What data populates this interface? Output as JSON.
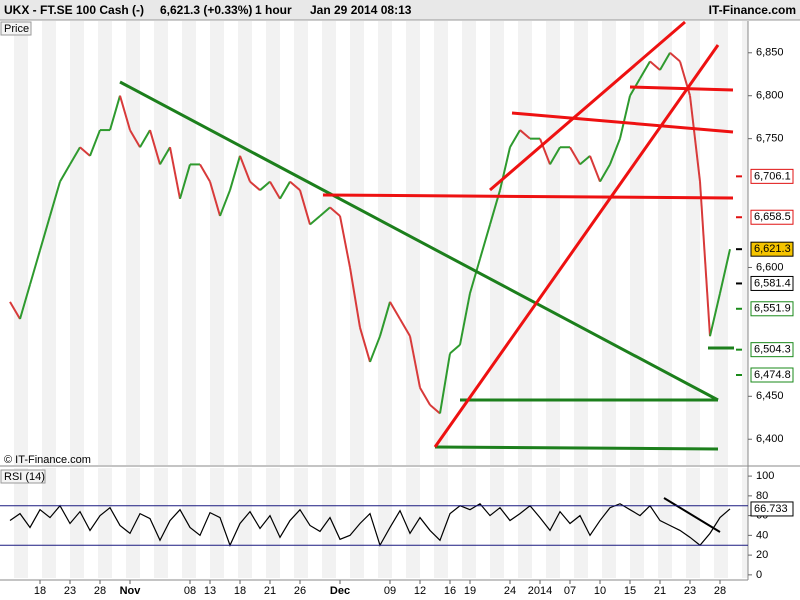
{
  "header": {
    "symbol": "UKX - FT.SE 100 Cash (-)",
    "quote": "6,621.3 (+0.33%)",
    "interval": "1 hour",
    "datetime": "Jan 29 2014 08:13",
    "brand": "IT-Finance.com"
  },
  "chart_data": [
    {
      "type": "line",
      "title": "Price",
      "watermark": "© IT-Finance.com",
      "categories": [
        null,
        null,
        null,
        "18",
        null,
        null,
        "23",
        null,
        null,
        "28",
        null,
        null,
        "Nov",
        null,
        null,
        null,
        null,
        null,
        "08",
        null,
        "13",
        null,
        null,
        "18",
        null,
        null,
        "21",
        null,
        null,
        "26",
        null,
        null,
        null,
        "Dec",
        null,
        null,
        null,
        null,
        "09",
        null,
        null,
        "12",
        null,
        null,
        "16",
        null,
        "19",
        null,
        null,
        null,
        "24",
        null,
        null,
        "2014",
        null,
        null,
        "07",
        null,
        null,
        "10",
        null,
        null,
        "15",
        null,
        null,
        "21",
        null,
        null,
        "23",
        null,
        null,
        "28",
        null
      ],
      "values": [
        6560,
        6540,
        6580,
        6620,
        6660,
        6700,
        6720,
        6740,
        6730,
        6760,
        6760,
        6800,
        6760,
        6740,
        6760,
        6720,
        6740,
        6680,
        6720,
        6720,
        6700,
        6660,
        6690,
        6730,
        6700,
        6690,
        6700,
        6680,
        6700,
        6690,
        6650,
        6660,
        6670,
        6660,
        6600,
        6530,
        6490,
        6520,
        6560,
        6540,
        6520,
        6460,
        6440,
        6430,
        6500,
        6510,
        6570,
        6610,
        6650,
        6690,
        6740,
        6760,
        6750,
        6750,
        6720,
        6740,
        6740,
        6720,
        6730,
        6700,
        6720,
        6750,
        6800,
        6820,
        6840,
        6830,
        6850,
        6840,
        6800,
        6700,
        6520,
        6570,
        6621.3
      ],
      "up_color": "#2e9a2e",
      "down_color": "#d83a3a",
      "ylim": [
        6370,
        6887
      ],
      "yticks": [
        {
          "value": 6400,
          "label": "6,400"
        },
        {
          "value": 6450,
          "label": "6,450"
        },
        {
          "value": 6600,
          "label": "6,600"
        },
        {
          "value": 6750,
          "label": "6,750"
        },
        {
          "value": 6800,
          "label": "6,800"
        },
        {
          "value": 6850,
          "label": "6,850"
        }
      ],
      "price_labels": [
        {
          "value": 6706.1,
          "label": "6,706.1",
          "color": "#e01010"
        },
        {
          "value": 6658.5,
          "label": "6,658.5",
          "color": "#e01010"
        },
        {
          "value": 6621.3,
          "label": "6,621.3",
          "color": "#000000",
          "background": "#f5c400"
        },
        {
          "value": 6581.4,
          "label": "6,581.4",
          "color": "#000000"
        },
        {
          "value": 6551.9,
          "label": "6,551.9",
          "color": "#1a8a1a"
        },
        {
          "value": 6504.3,
          "label": "6,504.3",
          "color": "#1a8a1a"
        },
        {
          "value": 6474.8,
          "label": "6,474.8",
          "color": "#1a8a1a"
        }
      ]
    },
    {
      "type": "line",
      "title": "RSI (14)",
      "color": "#000000",
      "values": [
        55,
        62,
        48,
        66,
        58,
        70,
        52,
        64,
        45,
        60,
        68,
        50,
        42,
        62,
        57,
        35,
        55,
        66,
        48,
        40,
        63,
        58,
        30,
        52,
        64,
        47,
        60,
        38,
        55,
        66,
        50,
        44,
        58,
        36,
        40,
        52,
        62,
        30,
        48,
        65,
        42,
        58,
        45,
        35,
        62,
        70,
        66,
        72,
        60,
        68,
        55,
        62,
        70,
        58,
        45,
        64,
        52,
        60,
        40,
        55,
        68,
        72,
        66,
        60,
        70,
        55,
        50,
        45,
        38,
        30,
        42,
        58,
        66.733
      ],
      "value_labels": {
        "72": "66.733"
      },
      "ylim": [
        -5.2,
        108.2
      ],
      "yticks": [
        0,
        20,
        40,
        60,
        80,
        100
      ],
      "levels": [
        30,
        70
      ],
      "level_color": "#1a1a80"
    }
  ]
}
